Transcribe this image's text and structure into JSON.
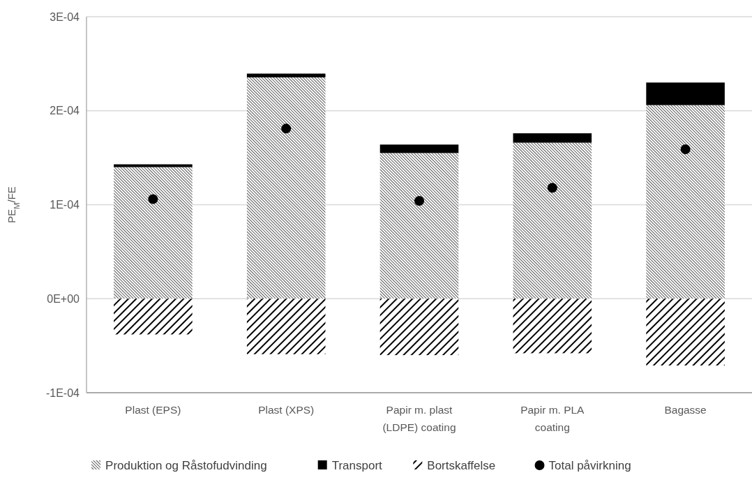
{
  "chart_data": {
    "type": "bar",
    "stacked": true,
    "ylabel": "PE$_{M}$/FE",
    "categories": [
      "Plast (EPS)",
      "Plast (XPS)",
      "Papir m. plast (LDPE) coating",
      "Papir m. PLA coating",
      "Bagasse"
    ],
    "series": [
      {
        "name": "Produktion og Råstofudvinding",
        "color": "#000000",
        "values": [
          0.00014,
          0.0002355,
          0.000155,
          0.000166,
          0.000206
        ]
      },
      {
        "name": "Transport",
        "color": "#000000",
        "values": [
          3e-06,
          4e-06,
          9e-06,
          1e-05,
          2.4e-05
        ]
      },
      {
        "name": "Bortskaffelse",
        "color": "#000000",
        "values": [
          -3.8e-05,
          -5.9e-05,
          -6e-05,
          -5.8e-05,
          -7.1e-05
        ]
      },
      {
        "name": "Total påvirkning",
        "type": "scatter",
        "color": "#000000",
        "x": [
          "Plast (EPS)",
          "Plast (XPS)",
          "Papir m. plast (LDPE) coating",
          "Papir m. PLA coating",
          "Bagasse"
        ],
        "values": [
          0.000106,
          0.000181,
          0.000104,
          0.000118,
          0.000159
        ]
      }
    ],
    "ylim": [
      -0.0001,
      0.0003
    ],
    "yticks": [
      {
        "value": -0.0001,
        "label": "-1E-04"
      },
      {
        "value": 0,
        "label": "0E+00"
      },
      {
        "value": 0.0001,
        "label": "1E-04"
      },
      {
        "value": 0.0002,
        "label": "2E-04"
      },
      {
        "value": 0.0003,
        "label": "3E-04"
      }
    ],
    "grid": "y",
    "legend": "bottom",
    "marker": "circle"
  }
}
